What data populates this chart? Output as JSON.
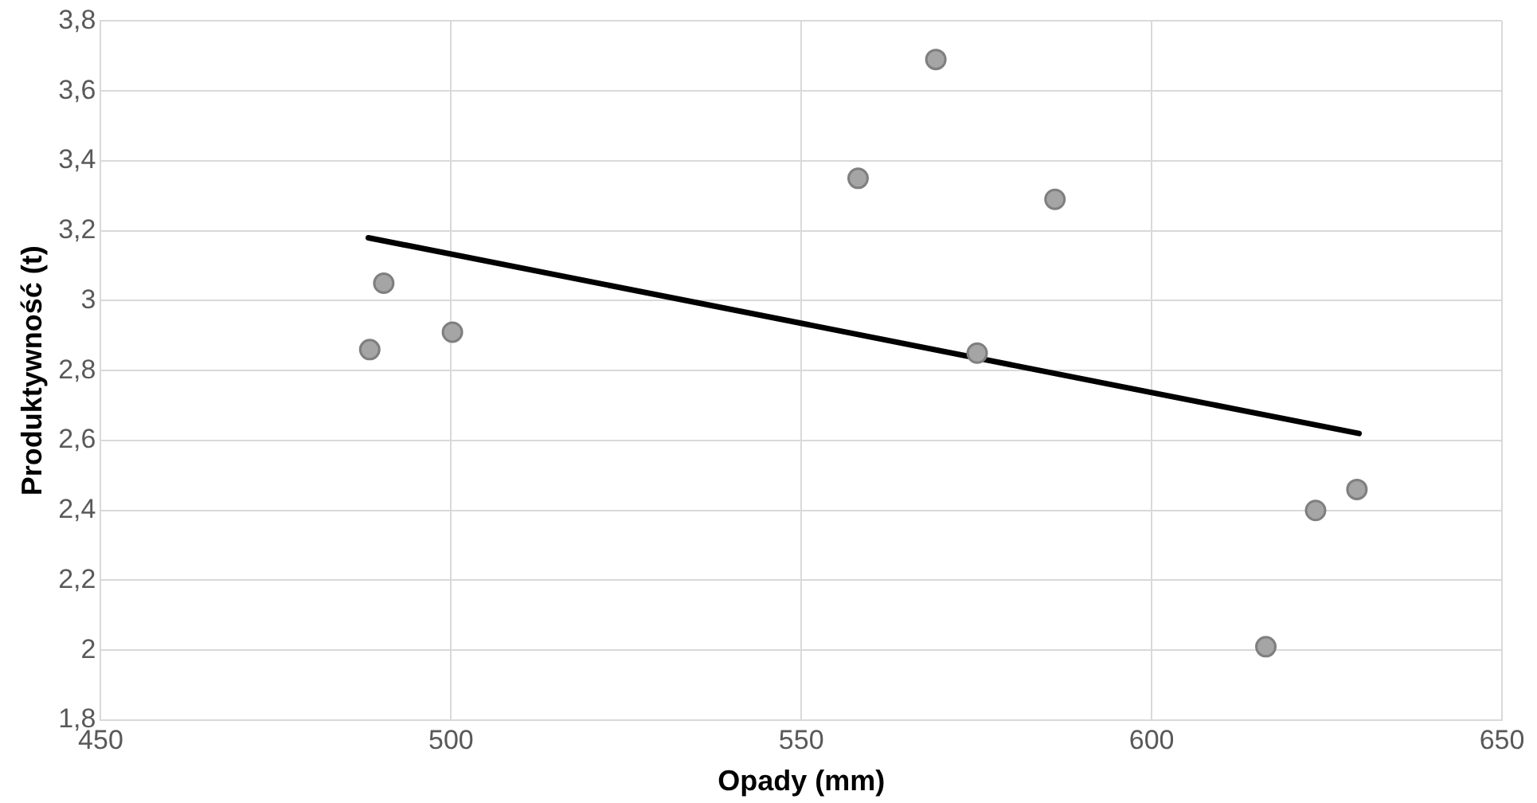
{
  "chart_data": {
    "type": "scatter",
    "xlabel": "Opady (mm)",
    "ylabel": "Produktywność (t)",
    "series": [
      {
        "color": "#a5a5a5",
        "x": [
          488.4,
          490.4,
          500.2,
          558.1,
          569.2,
          586.2,
          575.1,
          616.3,
          623.4,
          629.3
        ],
        "values": [
          2.86,
          3.05,
          2.91,
          3.35,
          3.69,
          3.29,
          2.85,
          2.01,
          2.4,
          2.46
        ]
      },
      {
        "type": "line",
        "color": "#000000",
        "marker": "none",
        "x": [
          488.2,
          629.6
        ],
        "values": [
          3.18,
          2.62
        ]
      }
    ],
    "xlim": [
      450,
      650
    ],
    "xticks": [
      450,
      500,
      550,
      600,
      650
    ],
    "ylim": [
      1.8,
      3.8
    ],
    "yticks": [
      {
        "value": 1.8,
        "label": "1,8"
      },
      2,
      {
        "value": 2.2,
        "label": "2,2"
      },
      {
        "value": 2.4,
        "label": "2,4"
      },
      {
        "value": 2.6,
        "label": "2,6"
      },
      {
        "value": 2.8,
        "label": "2,8"
      },
      3,
      {
        "value": 3.2,
        "label": "3,2"
      },
      {
        "value": 3.4,
        "label": "3,4"
      },
      {
        "value": 3.6,
        "label": "3,6"
      },
      {
        "value": 3.8,
        "label": "3,8"
      }
    ],
    "grid": true,
    "marker": "circle",
    "legend": false
  }
}
